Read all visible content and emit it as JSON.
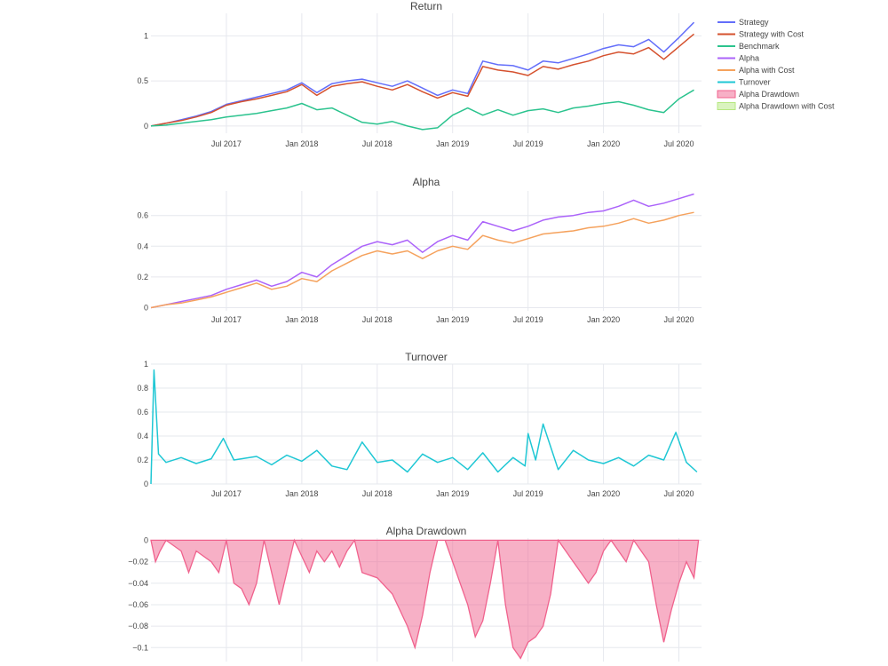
{
  "chart_data": {
    "type": "line",
    "legend": {
      "placement": "right",
      "items": [
        {
          "name": "Strategy",
          "color": "#636efa",
          "style": "line"
        },
        {
          "name": "Strategy with Cost",
          "color": "#d5512e",
          "style": "line"
        },
        {
          "name": "Benchmark",
          "color": "#2bc38e",
          "style": "line"
        },
        {
          "name": "Alpha",
          "color": "#ab63fa",
          "style": "line"
        },
        {
          "name": "Alpha with Cost",
          "color": "#f5a25d",
          "style": "line"
        },
        {
          "name": "Turnover",
          "color": "#1fc7d4",
          "style": "line"
        },
        {
          "name": "Alpha Drawdown",
          "color": "#f0628d",
          "style": "area"
        },
        {
          "name": "Alpha Drawdown with Cost",
          "color": "#b6e880",
          "style": "area"
        }
      ]
    },
    "x_ticks": [
      "Jul 2017",
      "Jan 2018",
      "Jul 2018",
      "Jan 2019",
      "Jul 2019",
      "Jan 2020",
      "Jul 2020"
    ],
    "panels": [
      {
        "title": "Return",
        "ylim": [
          -0.08,
          1.25
        ],
        "yticks": [
          {
            "v": 0,
            "label": "0"
          },
          {
            "v": 0.5,
            "label": "0.5"
          },
          {
            "v": 1,
            "label": "1"
          }
        ],
        "series": [
          {
            "name": "Strategy",
            "color": "#636efa",
            "x": [
              2017.0,
              2017.1,
              2017.2,
              2017.3,
              2017.4,
              2017.5,
              2017.6,
              2017.7,
              2017.8,
              2017.9,
              2018.0,
              2018.1,
              2018.2,
              2018.3,
              2018.4,
              2018.5,
              2018.6,
              2018.7,
              2018.8,
              2018.9,
              2019.0,
              2019.1,
              2019.2,
              2019.3,
              2019.4,
              2019.5,
              2019.6,
              2019.7,
              2019.8,
              2019.9,
              2020.0,
              2020.1,
              2020.2,
              2020.3,
              2020.4,
              2020.5,
              2020.6
            ],
            "y": [
              0.0,
              0.03,
              0.07,
              0.11,
              0.16,
              0.24,
              0.28,
              0.32,
              0.36,
              0.4,
              0.48,
              0.37,
              0.47,
              0.5,
              0.52,
              0.48,
              0.44,
              0.5,
              0.42,
              0.34,
              0.4,
              0.36,
              0.72,
              0.68,
              0.67,
              0.62,
              0.72,
              0.7,
              0.75,
              0.8,
              0.86,
              0.9,
              0.88,
              0.96,
              0.82,
              0.98,
              1.15
            ]
          },
          {
            "name": "Strategy with Cost",
            "color": "#d5512e",
            "x": [
              2017.0,
              2017.1,
              2017.2,
              2017.3,
              2017.4,
              2017.5,
              2017.6,
              2017.7,
              2017.8,
              2017.9,
              2018.0,
              2018.1,
              2018.2,
              2018.3,
              2018.4,
              2018.5,
              2018.6,
              2018.7,
              2018.8,
              2018.9,
              2019.0,
              2019.1,
              2019.2,
              2019.3,
              2019.4,
              2019.5,
              2019.6,
              2019.7,
              2019.8,
              2019.9,
              2020.0,
              2020.1,
              2020.2,
              2020.3,
              2020.4,
              2020.5,
              2020.6
            ],
            "y": [
              0.0,
              0.03,
              0.06,
              0.1,
              0.15,
              0.23,
              0.27,
              0.3,
              0.34,
              0.38,
              0.46,
              0.34,
              0.44,
              0.47,
              0.49,
              0.44,
              0.4,
              0.46,
              0.38,
              0.31,
              0.37,
              0.33,
              0.66,
              0.62,
              0.6,
              0.56,
              0.66,
              0.63,
              0.68,
              0.72,
              0.78,
              0.82,
              0.8,
              0.87,
              0.74,
              0.88,
              1.02
            ]
          },
          {
            "name": "Benchmark",
            "color": "#2bc38e",
            "x": [
              2017.0,
              2017.1,
              2017.2,
              2017.3,
              2017.4,
              2017.5,
              2017.6,
              2017.7,
              2017.8,
              2017.9,
              2018.0,
              2018.1,
              2018.2,
              2018.3,
              2018.4,
              2018.5,
              2018.6,
              2018.7,
              2018.8,
              2018.9,
              2019.0,
              2019.1,
              2019.2,
              2019.3,
              2019.4,
              2019.5,
              2019.6,
              2019.7,
              2019.8,
              2019.9,
              2020.0,
              2020.1,
              2020.2,
              2020.3,
              2020.4,
              2020.5,
              2020.6
            ],
            "y": [
              0.0,
              0.01,
              0.03,
              0.05,
              0.07,
              0.1,
              0.12,
              0.14,
              0.17,
              0.2,
              0.25,
              0.18,
              0.2,
              0.12,
              0.04,
              0.02,
              0.05,
              0.0,
              -0.04,
              -0.02,
              0.12,
              0.2,
              0.12,
              0.18,
              0.12,
              0.17,
              0.19,
              0.15,
              0.2,
              0.22,
              0.25,
              0.27,
              0.23,
              0.18,
              0.15,
              0.3,
              0.4
            ]
          }
        ]
      },
      {
        "title": "Alpha",
        "ylim": [
          -0.02,
          0.76
        ],
        "yticks": [
          {
            "v": 0,
            "label": "0"
          },
          {
            "v": 0.2,
            "label": "0.2"
          },
          {
            "v": 0.4,
            "label": "0.4"
          },
          {
            "v": 0.6,
            "label": "0.6"
          }
        ],
        "series": [
          {
            "name": "Alpha",
            "color": "#ab63fa",
            "x": [
              2017.0,
              2017.1,
              2017.2,
              2017.3,
              2017.4,
              2017.5,
              2017.6,
              2017.7,
              2017.8,
              2017.9,
              2018.0,
              2018.1,
              2018.2,
              2018.3,
              2018.4,
              2018.5,
              2018.6,
              2018.7,
              2018.8,
              2018.9,
              2019.0,
              2019.1,
              2019.2,
              2019.3,
              2019.4,
              2019.5,
              2019.6,
              2019.7,
              2019.8,
              2019.9,
              2020.0,
              2020.1,
              2020.2,
              2020.3,
              2020.4,
              2020.5,
              2020.6
            ],
            "y": [
              0.0,
              0.02,
              0.04,
              0.06,
              0.08,
              0.12,
              0.15,
              0.18,
              0.14,
              0.17,
              0.23,
              0.2,
              0.28,
              0.34,
              0.4,
              0.43,
              0.41,
              0.44,
              0.36,
              0.43,
              0.47,
              0.44,
              0.56,
              0.53,
              0.5,
              0.53,
              0.57,
              0.59,
              0.6,
              0.62,
              0.63,
              0.66,
              0.7,
              0.66,
              0.68,
              0.71,
              0.74
            ]
          },
          {
            "name": "Alpha with Cost",
            "color": "#f5a25d",
            "x": [
              2017.0,
              2017.1,
              2017.2,
              2017.3,
              2017.4,
              2017.5,
              2017.6,
              2017.7,
              2017.8,
              2017.9,
              2018.0,
              2018.1,
              2018.2,
              2018.3,
              2018.4,
              2018.5,
              2018.6,
              2018.7,
              2018.8,
              2018.9,
              2019.0,
              2019.1,
              2019.2,
              2019.3,
              2019.4,
              2019.5,
              2019.6,
              2019.7,
              2019.8,
              2019.9,
              2020.0,
              2020.1,
              2020.2,
              2020.3,
              2020.4,
              2020.5,
              2020.6
            ],
            "y": [
              0.0,
              0.02,
              0.03,
              0.05,
              0.07,
              0.1,
              0.13,
              0.16,
              0.12,
              0.14,
              0.19,
              0.17,
              0.24,
              0.29,
              0.34,
              0.37,
              0.35,
              0.37,
              0.32,
              0.37,
              0.4,
              0.38,
              0.47,
              0.44,
              0.42,
              0.45,
              0.48,
              0.49,
              0.5,
              0.52,
              0.53,
              0.55,
              0.58,
              0.55,
              0.57,
              0.6,
              0.62
            ]
          }
        ]
      },
      {
        "title": "Turnover",
        "ylim": [
          0,
          1
        ],
        "yticks": [
          {
            "v": 0,
            "label": "0"
          },
          {
            "v": 0.2,
            "label": "0.2"
          },
          {
            "v": 0.4,
            "label": "0.4"
          },
          {
            "v": 0.6,
            "label": "0.6"
          },
          {
            "v": 0.8,
            "label": "0.8"
          },
          {
            "v": 1,
            "label": "1"
          }
        ],
        "series": [
          {
            "name": "Turnover",
            "color": "#1fc7d4",
            "x": [
              2017.0,
              2017.02,
              2017.05,
              2017.1,
              2017.2,
              2017.3,
              2017.4,
              2017.48,
              2017.55,
              2017.7,
              2017.8,
              2017.9,
              2018.0,
              2018.1,
              2018.2,
              2018.3,
              2018.4,
              2018.5,
              2018.6,
              2018.7,
              2018.8,
              2018.9,
              2019.0,
              2019.1,
              2019.2,
              2019.3,
              2019.4,
              2019.48,
              2019.5,
              2019.55,
              2019.6,
              2019.7,
              2019.8,
              2019.9,
              2020.0,
              2020.1,
              2020.2,
              2020.3,
              2020.4,
              2020.48,
              2020.55,
              2020.62
            ],
            "y": [
              0.0,
              0.95,
              0.25,
              0.18,
              0.22,
              0.17,
              0.21,
              0.38,
              0.2,
              0.23,
              0.16,
              0.24,
              0.19,
              0.28,
              0.15,
              0.12,
              0.35,
              0.18,
              0.2,
              0.1,
              0.25,
              0.18,
              0.22,
              0.12,
              0.26,
              0.1,
              0.22,
              0.15,
              0.42,
              0.2,
              0.5,
              0.12,
              0.28,
              0.2,
              0.17,
              0.22,
              0.15,
              0.24,
              0.2,
              0.43,
              0.18,
              0.1
            ]
          }
        ]
      },
      {
        "title": "Alpha Drawdown",
        "ylim": [
          -0.113,
          0.002
        ],
        "yticks": [
          {
            "v": 0,
            "label": "0"
          },
          {
            "v": -0.02,
            "label": "−0.02"
          },
          {
            "v": -0.04,
            "label": "−0.04"
          },
          {
            "v": -0.06,
            "label": "−0.06"
          },
          {
            "v": -0.08,
            "label": "−0.08"
          },
          {
            "v": -0.1,
            "label": "−0.1"
          }
        ],
        "series": [
          {
            "name": "Alpha Drawdown",
            "color": "#f0628d",
            "fill": true,
            "x": [
              2017.0,
              2017.03,
              2017.06,
              2017.1,
              2017.2,
              2017.25,
              2017.3,
              2017.4,
              2017.45,
              2017.5,
              2017.55,
              2017.6,
              2017.65,
              2017.7,
              2017.75,
              2017.8,
              2017.85,
              2017.9,
              2017.95,
              2018.0,
              2018.05,
              2018.1,
              2018.15,
              2018.2,
              2018.25,
              2018.3,
              2018.35,
              2018.4,
              2018.5,
              2018.6,
              2018.7,
              2018.75,
              2018.8,
              2018.85,
              2018.9,
              2018.95,
              2019.0,
              2019.05,
              2019.1,
              2019.15,
              2019.2,
              2019.25,
              2019.3,
              2019.35,
              2019.4,
              2019.45,
              2019.5,
              2019.55,
              2019.6,
              2019.65,
              2019.7,
              2019.8,
              2019.9,
              2019.95,
              2020.0,
              2020.05,
              2020.1,
              2020.15,
              2020.2,
              2020.3,
              2020.35,
              2020.4,
              2020.45,
              2020.5,
              2020.55,
              2020.6,
              2020.63
            ],
            "y": [
              0.0,
              -0.02,
              -0.01,
              0.0,
              -0.01,
              -0.03,
              -0.01,
              -0.02,
              -0.03,
              0.0,
              -0.04,
              -0.045,
              -0.06,
              -0.04,
              0.0,
              -0.03,
              -0.06,
              -0.03,
              0.0,
              -0.015,
              -0.03,
              -0.01,
              -0.02,
              -0.01,
              -0.025,
              -0.01,
              0.0,
              -0.03,
              -0.035,
              -0.05,
              -0.08,
              -0.1,
              -0.07,
              -0.03,
              0.0,
              0.0,
              -0.02,
              -0.04,
              -0.06,
              -0.09,
              -0.075,
              -0.04,
              0.0,
              -0.06,
              -0.1,
              -0.11,
              -0.095,
              -0.09,
              -0.08,
              -0.05,
              0.0,
              -0.02,
              -0.04,
              -0.03,
              -0.01,
              0.0,
              -0.01,
              -0.02,
              0.0,
              -0.02,
              -0.06,
              -0.095,
              -0.065,
              -0.04,
              -0.02,
              -0.035,
              0.0
            ]
          }
        ]
      }
    ]
  }
}
